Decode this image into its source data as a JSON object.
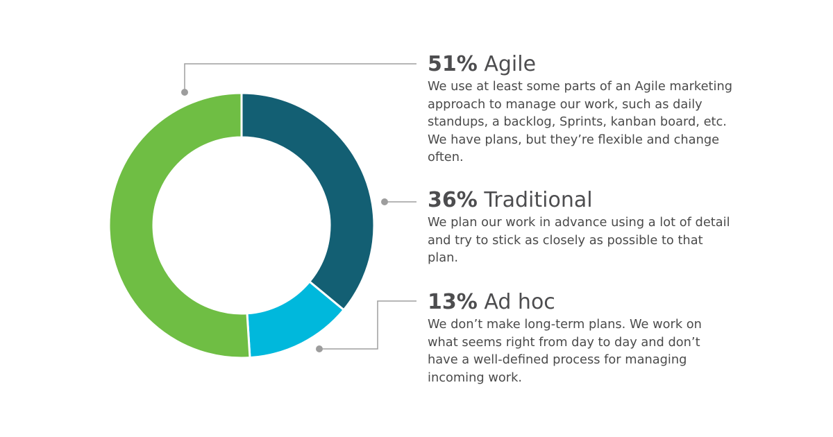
{
  "chart_data": {
    "type": "pie",
    "donut": true,
    "unit": "%",
    "slices": [
      {
        "key": "traditional",
        "value": 36,
        "pct_label": "36%",
        "name": "Traditional",
        "color": "#135f73",
        "description": "We plan our work in advance using a lot of detail and try to stick as closely as possible to that plan."
      },
      {
        "key": "adhoc",
        "value": 13,
        "pct_label": "13%",
        "name": "Ad hoc",
        "color": "#00b8dc",
        "description": "We don’t make long-term plans. We work on what seems right from day to day and don’t have a well-defined process for managing incoming work."
      },
      {
        "key": "agile",
        "value": 51,
        "pct_label": "51%",
        "name": "Agile",
        "color": "#6fbe44",
        "description": "We use at least some parts of an Agile marketing approach to manage our work, such as daily standups, a backlog, Sprints, kanban board, etc. We have plans, but they’re flexible and change often."
      }
    ],
    "leader_color": "#9d9d9d"
  }
}
